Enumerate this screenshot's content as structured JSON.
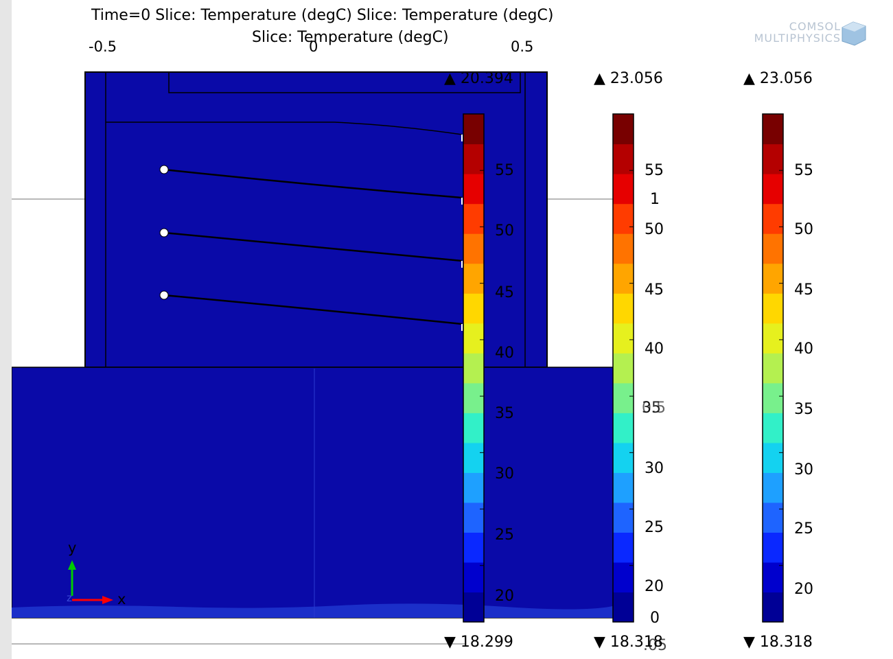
{
  "titles": {
    "line1": "Time=0   Slice: Temperature (degC)  Slice: Temperature (degC)",
    "line2": "Slice: Temperature (degC)"
  },
  "x_axis_ticks": [
    "-0.5",
    "0",
    "0.5"
  ],
  "logo": {
    "line1": "COMSOL",
    "line2": "MULTIPHYSICS"
  },
  "axis_triad": {
    "x": "x",
    "y": "y",
    "z": "z"
  },
  "colors": {
    "domain_fill": "#0a0aa8",
    "domain_fill_low": "#1b2fc9",
    "edge": "#000000",
    "axis_x": "#ff0000",
    "axis_y": "#00cc00",
    "colormap": [
      "#000096",
      "#0000cd",
      "#0a28ff",
      "#1e64ff",
      "#1ea0ff",
      "#14d2f0",
      "#32f0c8",
      "#78f08c",
      "#b4f050",
      "#e6f01e",
      "#ffd700",
      "#ffa500",
      "#ff7300",
      "#ff3c00",
      "#e60000",
      "#b40000",
      "#780000"
    ]
  },
  "colorbars": [
    {
      "name": "slice-1",
      "max": "▲ 20.394",
      "min": "▼ 18.299",
      "ticks": [
        "55",
        "50",
        "45",
        "40",
        "35",
        "30",
        "25",
        "20"
      ]
    },
    {
      "name": "slice-2",
      "max": "▲ 23.056",
      "min": "▼ 18.318",
      "ticks": [
        "55",
        "1",
        "50",
        "45",
        "40",
        "35",
        "30",
        "25",
        "20",
        "0"
      ],
      "overlap_labels": [
        "0.5",
        ".05"
      ]
    },
    {
      "name": "slice-3",
      "max": "▲ 23.056",
      "min": "▼ 18.318",
      "ticks": [
        "55",
        "50",
        "45",
        "40",
        "35",
        "30",
        "25",
        "20"
      ]
    }
  ]
}
